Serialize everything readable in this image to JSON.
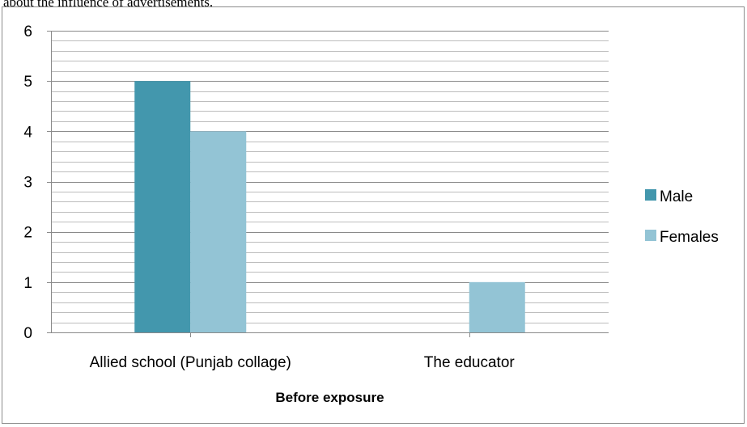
{
  "caption_fragment": "about the influence of advertisements.",
  "chart_data": {
    "type": "bar",
    "categories": [
      "Allied school (Punjab collage)",
      "The educator"
    ],
    "series": [
      {
        "name": "Male",
        "values": [
          5,
          0
        ],
        "color": "#4397ad"
      },
      {
        "name": "Females",
        "values": [
          4,
          1
        ],
        "color": "#93c4d5"
      }
    ],
    "xlabel": "Before exposure",
    "ylabel": "",
    "ylim": [
      0,
      6
    ],
    "yticks": [
      0,
      1,
      2,
      3,
      4,
      5,
      6
    ],
    "minor_gridlines_per_unit": 5,
    "grid": true,
    "legend": "right"
  }
}
